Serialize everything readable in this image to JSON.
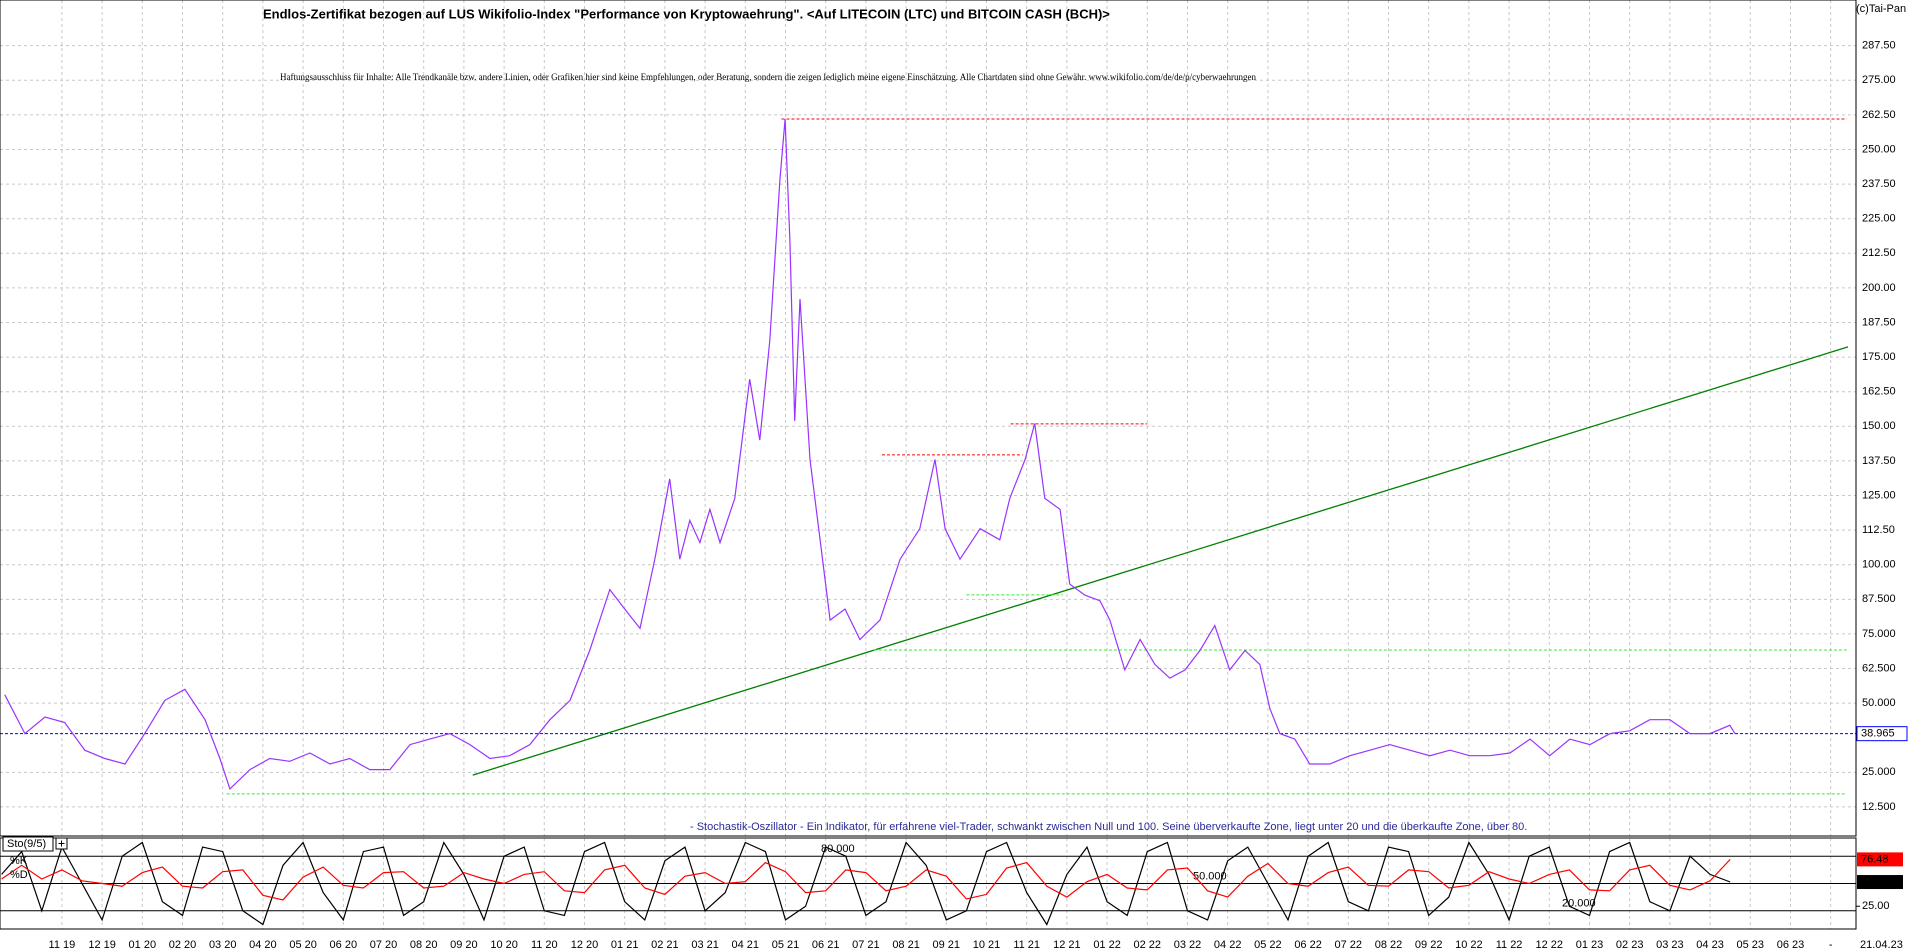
{
  "chart_data": [
    {
      "type": "line",
      "title": "Endlos-Zertifikat bezogen auf LUS Wikifolio-Index \"Performance von Kryptowaehrung\". <Auf LITECOIN (LTC) und BITCOIN CASH (BCH)>",
      "subtitle": "Haftungsausschluss für Inhalte: Alle Trendkanäle bzw. andere Linien, oder Grafiken hier sind keine Empfehlungen, oder Beratung, sondern die zeigen lediglich meine eigene Einschätzung. Alle Chartdaten sind ohne Gewähr.  www.wikifolio.com/de/de/p/cyberwaehrungen",
      "credit": "(c)Tai-Pan",
      "x": [
        -1.42,
        -0.92,
        -0.42,
        0.07,
        0.57,
        1.07,
        1.57,
        2.06,
        2.56,
        3.06,
        3.56,
        3.93,
        4.18,
        4.68,
        5.17,
        5.67,
        6.17,
        6.67,
        7.16,
        7.66,
        8.16,
        8.66,
        9.15,
        9.65,
        10.15,
        10.65,
        11.14,
        11.64,
        12.14,
        12.64,
        13.13,
        13.63,
        14.0,
        14.38,
        14.75,
        15.12,
        15.37,
        15.62,
        15.87,
        16.12,
        16.37,
        16.74,
        17.11,
        17.36,
        17.61,
        17.86,
        17.99,
        18.11,
        18.23,
        18.36,
        18.61,
        18.86,
        19.11,
        19.48,
        19.85,
        20.35,
        20.85,
        21.34,
        21.72,
        21.97,
        22.34,
        22.84,
        23.33,
        23.58,
        23.96,
        24.2,
        24.45,
        24.83,
        25.07,
        25.45,
        25.82,
        26.07,
        26.44,
        26.82,
        27.19,
        27.56,
        27.94,
        28.31,
        28.68,
        29.05,
        29.43,
        29.8,
        30.05,
        30.3,
        30.67,
        31.04,
        31.54,
        32.04,
        32.54,
        33.03,
        33.53,
        34.03,
        34.53,
        35.02,
        35.52,
        36.02,
        36.52,
        37.01,
        37.51,
        38.01,
        38.51,
        39.0,
        39.5,
        40.0,
        40.5,
        41.0,
        41.49,
        41.62
      ],
      "series": [
        {
          "color": "#9933ff",
          "values": [
            53,
            39,
            45,
            43,
            33,
            30,
            28,
            39,
            51,
            55,
            44,
            30,
            19,
            26,
            30,
            29,
            32,
            28,
            30,
            26,
            26,
            35,
            37,
            39,
            35,
            30,
            31,
            35,
            44,
            51,
            69,
            91,
            84,
            77,
            102,
            131,
            102,
            116,
            108,
            120,
            108,
            124,
            167,
            145,
            181,
            239,
            261,
            217,
            152,
            196,
            138,
            109,
            80,
            84,
            73,
            80,
            102,
            113,
            138,
            113,
            102,
            113,
            109,
            124,
            138,
            151,
            124,
            120,
            93,
            89,
            87,
            80,
            62,
            73,
            64,
            59,
            62,
            69,
            78,
            62,
            69,
            64,
            48,
            39,
            37,
            28,
            28,
            31,
            33,
            35,
            33,
            31,
            33,
            31,
            31,
            32,
            37,
            31,
            37,
            35,
            39,
            40,
            44,
            44,
            39,
            39,
            42,
            39
          ]
        }
      ],
      "last_value": 38.965,
      "last_date": "21.04.23",
      "lines": [
        {
          "x": [
            10.22,
            44.43
          ],
          "y": [
            24.0,
            178.7
          ],
          "color": "#008000",
          "style": "solid"
        },
        {
          "x": [
            17.9,
            44.4
          ],
          "y": [
            261,
            261
          ],
          "color": "#ff0000",
          "style": "dashed"
        },
        {
          "x": [
            20.4,
            23.9
          ],
          "y": [
            139.7,
            139.7
          ],
          "color": "#ff0000",
          "style": "dashed"
        },
        {
          "x": [
            23.6,
            27.0
          ],
          "y": [
            150.9,
            150.9
          ],
          "color": "#ff0000",
          "style": "dashed"
        },
        {
          "x": [
            22.5,
            24.9
          ],
          "y": [
            89.1,
            89.1
          ],
          "color": "#33ee33",
          "style": "dashed"
        },
        {
          "x": [
            20.2,
            44.4
          ],
          "y": [
            69.2,
            69.2
          ],
          "color": "#33ee33",
          "style": "dashed"
        },
        {
          "x": [
            4.1,
            44.4
          ],
          "y": [
            17.2,
            17.2
          ],
          "color": "#33ee33",
          "style": "dashed"
        }
      ],
      "last_value_color": "#0000ff",
      "xlim": [
        -1.54,
        44.63
      ],
      "xticks": [
        {
          "value": 0,
          "label": "11 19"
        },
        {
          "value": 1,
          "label": "12 19"
        },
        {
          "value": 2,
          "label": "01 20"
        },
        {
          "value": 3,
          "label": "02 20"
        },
        {
          "value": 4,
          "label": "03 20"
        },
        {
          "value": 5,
          "label": "04 20"
        },
        {
          "value": 6,
          "label": "05 20"
        },
        {
          "value": 7,
          "label": "06 20"
        },
        {
          "value": 8,
          "label": "07 20"
        },
        {
          "value": 9,
          "label": "08 20"
        },
        {
          "value": 10,
          "label": "09 20"
        },
        {
          "value": 11,
          "label": "10 20"
        },
        {
          "value": 12,
          "label": "11 20"
        },
        {
          "value": 13,
          "label": "12 20"
        },
        {
          "value": 14,
          "label": "01 21"
        },
        {
          "value": 15,
          "label": "02 21"
        },
        {
          "value": 16,
          "label": "03 21"
        },
        {
          "value": 17,
          "label": "04 21"
        },
        {
          "value": 18,
          "label": "05 21"
        },
        {
          "value": 19,
          "label": "06 21"
        },
        {
          "value": 20,
          "label": "07 21"
        },
        {
          "value": 21,
          "label": "08 21"
        },
        {
          "value": 22,
          "label": "09 21"
        },
        {
          "value": 23,
          "label": "10 21"
        },
        {
          "value": 24,
          "label": "11 21"
        },
        {
          "value": 25,
          "label": "12 21"
        },
        {
          "value": 26,
          "label": "01 22"
        },
        {
          "value": 27,
          "label": "02 22"
        },
        {
          "value": 28,
          "label": "03 22"
        },
        {
          "value": 29,
          "label": "04 22"
        },
        {
          "value": 30,
          "label": "05 22"
        },
        {
          "value": 31,
          "label": "06 22"
        },
        {
          "value": 32,
          "label": "07 22"
        },
        {
          "value": 33,
          "label": "08 22"
        },
        {
          "value": 34,
          "label": "09 22"
        },
        {
          "value": 35,
          "label": "10 22"
        },
        {
          "value": 36,
          "label": "11 22"
        },
        {
          "value": 37,
          "label": "12 22"
        },
        {
          "value": 38,
          "label": "01 23"
        },
        {
          "value": 39,
          "label": "02 23"
        },
        {
          "value": 40,
          "label": "03 23"
        },
        {
          "value": 41,
          "label": "04 23"
        },
        {
          "value": 42,
          "label": "05 23"
        },
        {
          "value": 43,
          "label": "06 23"
        },
        {
          "value": 44,
          "label": "-"
        }
      ],
      "ylim": [
        2,
        304
      ],
      "yticks": [
        {
          "value": 12.5,
          "label": "12.500"
        },
        {
          "value": 25,
          "label": "25.000"
        },
        {
          "value": 50,
          "label": "50.000"
        },
        {
          "value": 62.5,
          "label": "62.500"
        },
        {
          "value": 75,
          "label": "75.000"
        },
        {
          "value": 87.5,
          "label": "87.500"
        },
        {
          "value": 100,
          "label": "100.00"
        },
        {
          "value": 112.5,
          "label": "112.50"
        },
        {
          "value": 125,
          "label": "125.00"
        },
        {
          "value": 137.5,
          "label": "137.50"
        },
        {
          "value": 150,
          "label": "150.00"
        },
        {
          "value": 162.5,
          "label": "162.50"
        },
        {
          "value": 175,
          "label": "175.00"
        },
        {
          "value": 187.5,
          "label": "187.50"
        },
        {
          "value": 200,
          "label": "200.00"
        },
        {
          "value": 212.5,
          "label": "212.50"
        },
        {
          "value": 225,
          "label": "225.00"
        },
        {
          "value": 237.5,
          "label": "237.50"
        },
        {
          "value": 250,
          "label": "250.00"
        },
        {
          "value": 262.5,
          "label": "262.50"
        },
        {
          "value": 275,
          "label": "275.00"
        },
        {
          "value": 287.5,
          "label": "287.50"
        }
      ],
      "grid": true
    },
    {
      "type": "line",
      "indicator": "Sto(9/5)",
      "annotation": "- Stochastik-Oszillator - Ein Indikator, für erfahrene viel-Trader, schwankt zwischen Null und 100. Seine überverkaufte Zone, liegt unter 20 und die überkaufte Zone, über 80.",
      "x": [
        -1.5,
        -1,
        -0.5,
        0,
        0.5,
        1,
        1.5,
        2,
        2.5,
        3,
        3.5,
        4,
        4.5,
        5,
        5.5,
        6,
        6.5,
        7,
        7.5,
        8,
        8.5,
        9,
        9.5,
        10,
        10.5,
        11,
        11.5,
        12,
        12.5,
        13,
        13.5,
        14,
        14.5,
        15,
        15.5,
        16,
        16.5,
        17,
        17.5,
        18,
        18.5,
        19,
        19.5,
        20,
        20.5,
        21,
        21.5,
        22,
        22.5,
        23,
        23.5,
        24,
        24.5,
        25,
        25.5,
        26,
        26.5,
        27,
        27.5,
        28,
        28.5,
        29,
        29.5,
        30,
        30.5,
        31,
        31.5,
        32,
        32.5,
        33,
        33.5,
        34,
        34.5,
        35,
        35.5,
        36,
        36.5,
        37,
        37.5,
        38,
        38.5,
        39,
        39.5,
        40,
        40.5,
        41,
        41.5
      ],
      "series": [
        {
          "name": "%K",
          "color": "#000000",
          "last_value": 51.61,
          "values": [
            60,
            85,
            20,
            90,
            50,
            10,
            80,
            95,
            30,
            15,
            90,
            85,
            20,
            5,
            70,
            95,
            40,
            10,
            85,
            90,
            15,
            30,
            95,
            60,
            10,
            80,
            90,
            20,
            15,
            85,
            95,
            30,
            10,
            75,
            90,
            20,
            40,
            95,
            85,
            10,
            25,
            90,
            80,
            15,
            30,
            95,
            70,
            10,
            20,
            85,
            95,
            40,
            5,
            60,
            90,
            30,
            15,
            85,
            95,
            20,
            10,
            75,
            90,
            50,
            10,
            80,
            95,
            30,
            20,
            90,
            85,
            15,
            35,
            95,
            60,
            10,
            80,
            90,
            25,
            15,
            85,
            95,
            30,
            20,
            80,
            60,
            51.61
          ]
        },
        {
          "name": "%D",
          "color": "#ff0000",
          "last_value": 76.48,
          "values": [
            55,
            70,
            55,
            65,
            53,
            50,
            47,
            62,
            68,
            47,
            45,
            63,
            65,
            37,
            32,
            57,
            68,
            48,
            45,
            62,
            63,
            45,
            47,
            62,
            55,
            50,
            60,
            63,
            42,
            40,
            65,
            70,
            45,
            38,
            58,
            62,
            50,
            52,
            73,
            63,
            40,
            42,
            65,
            62,
            42,
            47,
            65,
            58,
            33,
            38,
            67,
            73,
            47,
            35,
            52,
            60,
            45,
            43,
            65,
            67,
            42,
            35,
            58,
            72,
            50,
            47,
            62,
            68,
            48,
            47,
            65,
            63,
            45,
            48,
            63,
            55,
            50,
            60,
            65,
            43,
            42,
            65,
            70,
            48,
            43,
            53,
            76.48
          ]
        }
      ],
      "levels": [
        {
          "value": 80,
          "label": "80.000"
        },
        {
          "value": 50,
          "label": "50.000"
        },
        {
          "value": 20,
          "label": "20.000"
        }
      ],
      "ylim": [
        0,
        100
      ],
      "yticks": [
        {
          "value": 25,
          "label": "25.00"
        }
      ]
    }
  ]
}
